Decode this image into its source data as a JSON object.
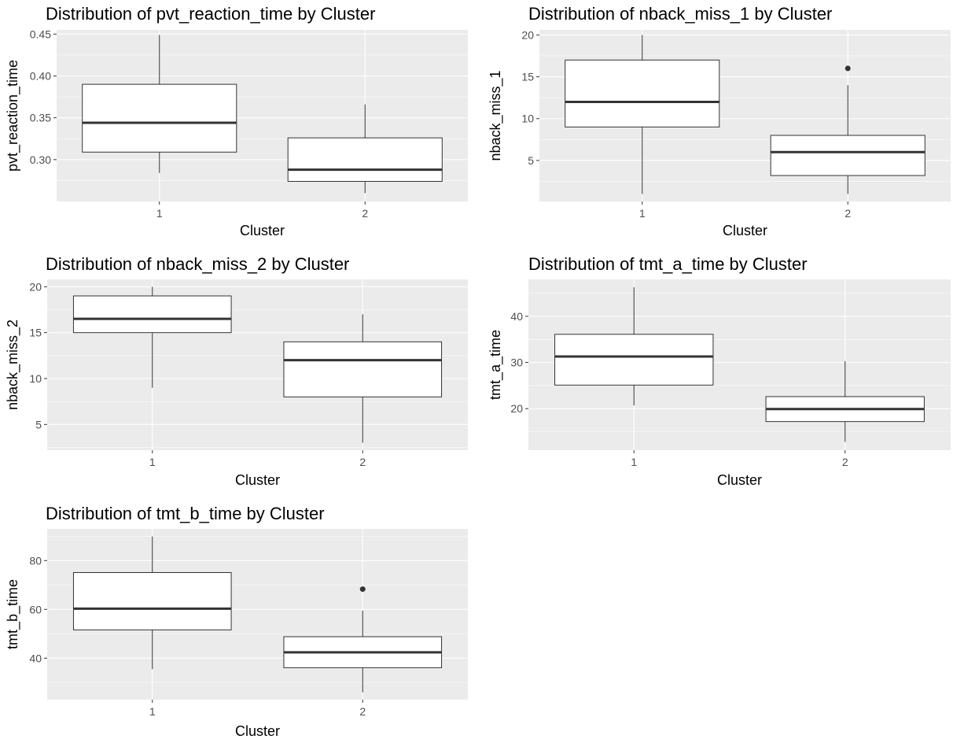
{
  "chart_data": [
    {
      "type": "box",
      "title": "Distribution of pvt_reaction_time by Cluster",
      "xlabel": "Cluster",
      "ylabel": "pvt_reaction_time",
      "categories": [
        "1",
        "2"
      ],
      "ylim": [
        0.25,
        0.455
      ],
      "yticks": [
        0.3,
        0.35,
        0.4,
        0.45
      ],
      "ytick_labels": [
        "0.30",
        "0.35",
        "0.40",
        "0.45"
      ],
      "boxes": [
        {
          "category": "1",
          "min": 0.284,
          "q1": 0.309,
          "median": 0.344,
          "q3": 0.39,
          "max": 0.449,
          "outliers": []
        },
        {
          "category": "2",
          "min": 0.26,
          "q1": 0.274,
          "median": 0.288,
          "q3": 0.326,
          "max": 0.366,
          "outliers": []
        }
      ]
    },
    {
      "type": "box",
      "title": "Distribution of nback_miss_1 by Cluster",
      "xlabel": "Cluster",
      "ylabel": "nback_miss_1",
      "categories": [
        "1",
        "2"
      ],
      "ylim": [
        0.1,
        20.6
      ],
      "yticks": [
        5,
        10,
        15,
        20
      ],
      "ytick_labels": [
        "5",
        "10",
        "15",
        "20"
      ],
      "boxes": [
        {
          "category": "1",
          "min": 1,
          "q1": 9,
          "median": 12,
          "q3": 17,
          "max": 20,
          "outliers": []
        },
        {
          "category": "2",
          "min": 1,
          "q1": 3.2,
          "median": 6,
          "q3": 8,
          "max": 14,
          "outliers": [
            16
          ]
        }
      ]
    },
    {
      "type": "box",
      "title": "Distribution of nback_miss_2 by Cluster",
      "xlabel": "Cluster",
      "ylabel": "nback_miss_2",
      "categories": [
        "1",
        "2"
      ],
      "ylim": [
        2.2,
        20.8
      ],
      "yticks": [
        5,
        10,
        15,
        20
      ],
      "ytick_labels": [
        "5",
        "10",
        "15",
        "20"
      ],
      "boxes": [
        {
          "category": "1",
          "min": 9,
          "q1": 15,
          "median": 16.5,
          "q3": 19,
          "max": 20,
          "outliers": []
        },
        {
          "category": "2",
          "min": 3,
          "q1": 8,
          "median": 12,
          "q3": 14,
          "max": 17,
          "outliers": []
        }
      ]
    },
    {
      "type": "box",
      "title": "Distribution of tmt_a_time by Cluster",
      "xlabel": "Cluster",
      "ylabel": "tmt_a_time",
      "categories": [
        "1",
        "2"
      ],
      "ylim": [
        11,
        48
      ],
      "yticks": [
        20,
        30,
        40
      ],
      "ytick_labels": [
        "20",
        "30",
        "40"
      ],
      "boxes": [
        {
          "category": "1",
          "min": 20.7,
          "q1": 25.1,
          "median": 31.3,
          "q3": 36.1,
          "max": 46.3,
          "outliers": []
        },
        {
          "category": "2",
          "min": 12.8,
          "q1": 17.2,
          "median": 19.9,
          "q3": 22.6,
          "max": 30.3,
          "outliers": []
        }
      ]
    },
    {
      "type": "box",
      "title": "Distribution of tmt_b_time by Cluster",
      "xlabel": "Cluster",
      "ylabel": "tmt_b_time",
      "categories": [
        "1",
        "2"
      ],
      "ylim": [
        23,
        93
      ],
      "yticks": [
        40,
        60,
        80
      ],
      "ytick_labels": [
        "40",
        "60",
        "80"
      ],
      "boxes": [
        {
          "category": "1",
          "min": 35.5,
          "q1": 51.6,
          "median": 60.3,
          "q3": 75.1,
          "max": 89.9,
          "outliers": []
        },
        {
          "category": "2",
          "min": 26,
          "q1": 36.1,
          "median": 42.4,
          "q3": 48.8,
          "max": 59.5,
          "outliers": [
            68.3
          ]
        }
      ]
    }
  ]
}
